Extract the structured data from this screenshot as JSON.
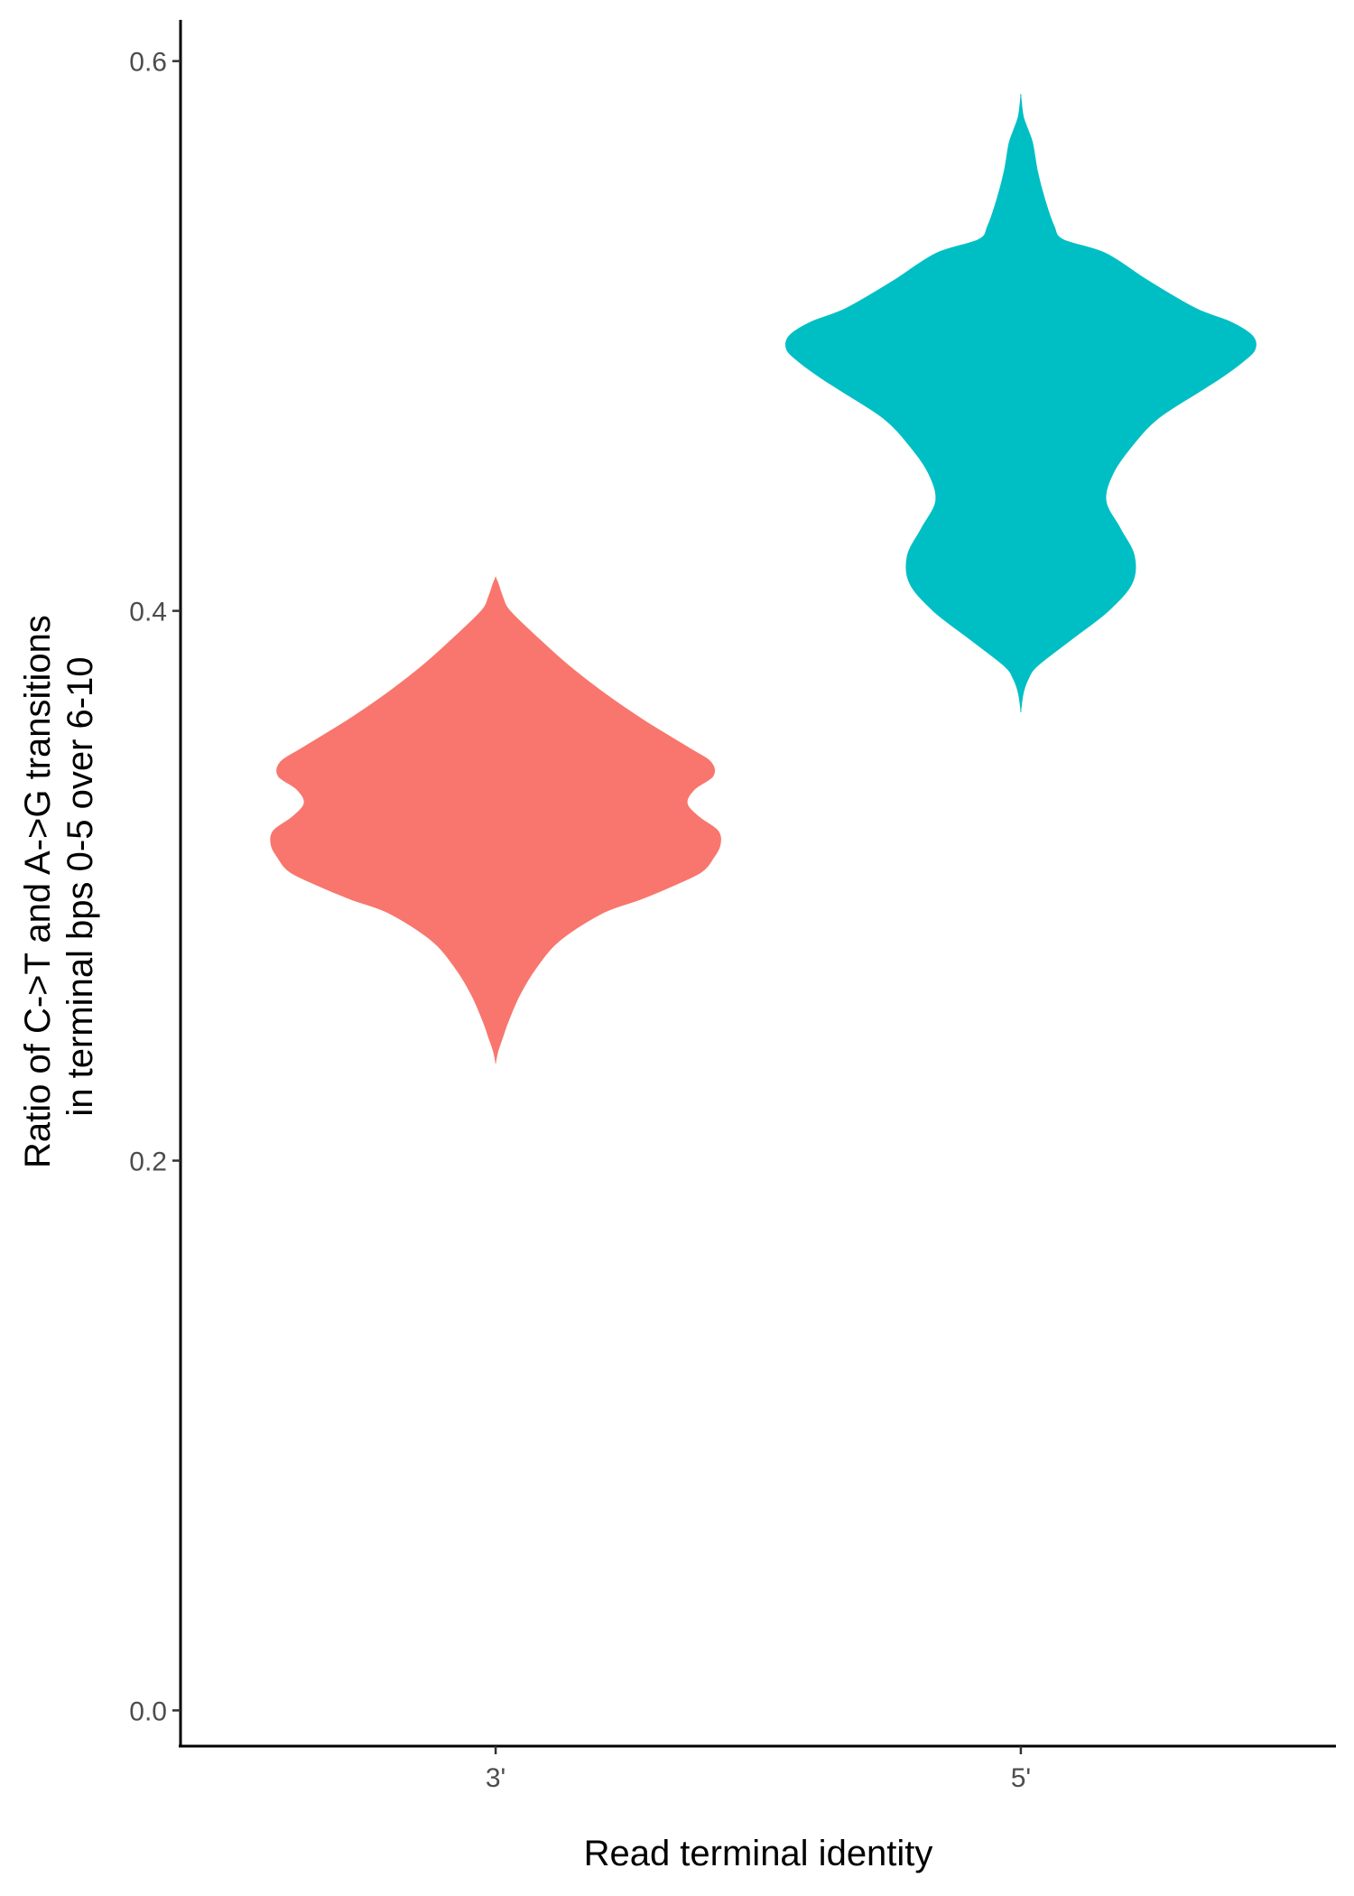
{
  "chart_data": {
    "type": "violin",
    "title": "",
    "xlabel": "Read terminal identity",
    "ylabel_lines": [
      "Ratio of C->T and A->G transitions",
      "in terminal bps 0-5 over 6-10"
    ],
    "ylim": [
      -0.013,
      0.615
    ],
    "y_ticks": [
      0.0,
      0.2,
      0.4,
      0.6
    ],
    "y_tick_labels": [
      "0.0",
      "0.2",
      "0.4",
      "0.6"
    ],
    "categories": [
      "3'",
      "5'"
    ],
    "grid": false,
    "legend": "none",
    "series": [
      {
        "category": "3'",
        "color": "#F8766D",
        "min": 0.236,
        "max": 0.412,
        "density_profile": [
          [
            0.236,
            0.0
          ],
          [
            0.24,
            0.01
          ],
          [
            0.245,
            0.03
          ],
          [
            0.25,
            0.05
          ],
          [
            0.26,
            0.1
          ],
          [
            0.27,
            0.17
          ],
          [
            0.28,
            0.27
          ],
          [
            0.29,
            0.45
          ],
          [
            0.295,
            0.61
          ],
          [
            0.3,
            0.75
          ],
          [
            0.305,
            0.87
          ],
          [
            0.31,
            0.92
          ],
          [
            0.315,
            0.95
          ],
          [
            0.32,
            0.94
          ],
          [
            0.325,
            0.86
          ],
          [
            0.33,
            0.81
          ],
          [
            0.335,
            0.84
          ],
          [
            0.34,
            0.92
          ],
          [
            0.345,
            0.91
          ],
          [
            0.35,
            0.82
          ],
          [
            0.36,
            0.63
          ],
          [
            0.37,
            0.46
          ],
          [
            0.38,
            0.31
          ],
          [
            0.39,
            0.18
          ],
          [
            0.4,
            0.06
          ],
          [
            0.405,
            0.03
          ],
          [
            0.41,
            0.01
          ],
          [
            0.412,
            0.0
          ]
        ]
      },
      {
        "category": "5'",
        "color": "#00BFC4",
        "min": 0.364,
        "max": 0.587,
        "density_profile": [
          [
            0.364,
            0.0
          ],
          [
            0.37,
            0.01
          ],
          [
            0.375,
            0.03
          ],
          [
            0.38,
            0.07
          ],
          [
            0.39,
            0.22
          ],
          [
            0.4,
            0.37
          ],
          [
            0.41,
            0.47
          ],
          [
            0.42,
            0.48
          ],
          [
            0.43,
            0.42
          ],
          [
            0.44,
            0.36
          ],
          [
            0.45,
            0.39
          ],
          [
            0.46,
            0.47
          ],
          [
            0.47,
            0.58
          ],
          [
            0.48,
            0.76
          ],
          [
            0.485,
            0.85
          ],
          [
            0.49,
            0.93
          ],
          [
            0.495,
            0.99
          ],
          [
            0.5,
            0.98
          ],
          [
            0.505,
            0.89
          ],
          [
            0.51,
            0.74
          ],
          [
            0.52,
            0.54
          ],
          [
            0.53,
            0.36
          ],
          [
            0.535,
            0.18
          ],
          [
            0.54,
            0.14
          ],
          [
            0.55,
            0.1
          ],
          [
            0.56,
            0.07
          ],
          [
            0.57,
            0.05
          ],
          [
            0.575,
            0.03
          ],
          [
            0.58,
            0.01
          ],
          [
            0.587,
            0.0
          ]
        ]
      }
    ]
  }
}
